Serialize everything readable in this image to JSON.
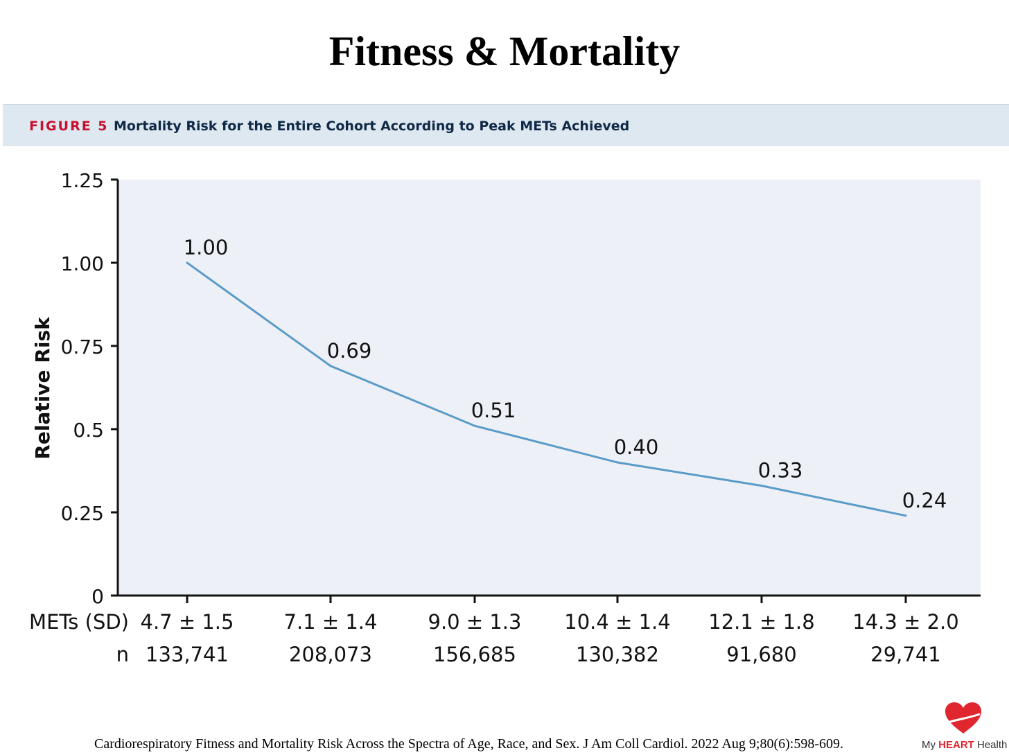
{
  "slide": {
    "title": "Fitness & Mortality"
  },
  "figure": {
    "label": "FIGURE 5",
    "caption": "Mortality Risk for the Entire Cohort According to Peak METs Achieved"
  },
  "chart_data": {
    "type": "line",
    "ylabel": "Relative Risk",
    "ylim": [
      0,
      1.25
    ],
    "yticks": [
      "0",
      "0.25",
      "0.5",
      "0.75",
      "1.00",
      "1.25"
    ],
    "ytick_values": [
      0,
      0.25,
      0.5,
      0.75,
      1.0,
      1.25
    ],
    "x_row_labels": [
      "METs (SD)",
      "n"
    ],
    "categories": [
      "4.7 ± 1.5",
      "7.1 ± 1.4",
      "9.0 ± 1.3",
      "10.4 ± 1.4",
      "12.1 ± 1.8",
      "14.3 ± 2.0"
    ],
    "n_values": [
      "133,741",
      "208,073",
      "156,685",
      "130,382",
      "91,680",
      "29,741"
    ],
    "values": [
      1.0,
      0.69,
      0.51,
      0.4,
      0.33,
      0.24
    ],
    "data_labels": [
      "1.00",
      "0.69",
      "0.51",
      "0.40",
      "0.33",
      "0.24"
    ],
    "line_color": "#5b9bc8",
    "plot_background": "#edf1f7",
    "grid": false
  },
  "citation": "Cardiorespiratory Fitness and Mortality Risk Across the Spectra of Age, Race, and Sex. J Am Coll Cardiol. 2022 Aug 9;80(6):598-609.",
  "brand": {
    "prefix": "My ",
    "highlight": "HEART",
    "suffix": " Health",
    "accent_color": "#e0262f"
  }
}
